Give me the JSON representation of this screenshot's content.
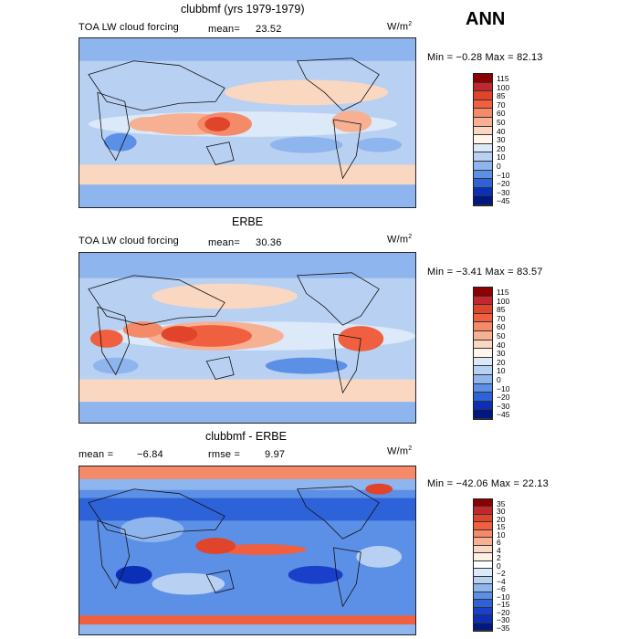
{
  "header": {
    "season": "ANN"
  },
  "panels": [
    {
      "title": "clubbmf (yrs 1979-1979)",
      "left_label": "TOA LW cloud forcing",
      "stat1_label": "mean=",
      "stat1_value": "23.52",
      "units": "W/m",
      "units_sup": "2",
      "minmax": "Min =  −0.28  Max =  82.13",
      "levels": [
        "115",
        "100",
        "85",
        "70",
        "60",
        "50",
        "40",
        "30",
        "20",
        "10",
        "0",
        "−10",
        "−20",
        "−30",
        "−45"
      ],
      "colors": [
        "#8b0000",
        "#c1272d",
        "#e0442a",
        "#f06040",
        "#f58a68",
        "#f7b092",
        "#fad7c0",
        "#fff5ec",
        "#dce9f8",
        "#b8d1f3",
        "#8fb5ee",
        "#5c8fe6",
        "#2d62d8",
        "#0c2fb8",
        "#001880"
      ]
    },
    {
      "title": "ERBE",
      "left_label": "TOA LW cloud forcing",
      "stat1_label": "mean=",
      "stat1_value": "30.36",
      "units": "W/m",
      "units_sup": "2",
      "minmax": "Min =  −3.41  Max =  83.57",
      "levels": [
        "115",
        "100",
        "85",
        "70",
        "60",
        "50",
        "40",
        "30",
        "20",
        "10",
        "0",
        "−10",
        "−20",
        "−30",
        "−45"
      ],
      "colors": [
        "#8b0000",
        "#c1272d",
        "#e0442a",
        "#f06040",
        "#f58a68",
        "#f7b092",
        "#fad7c0",
        "#fff5ec",
        "#dce9f8",
        "#b8d1f3",
        "#8fb5ee",
        "#5c8fe6",
        "#2d62d8",
        "#0c2fb8",
        "#001880"
      ]
    },
    {
      "title": "clubbmf - ERBE",
      "stat1_label": "mean =",
      "stat1_value": "−6.84",
      "stat2_label": "rmse =",
      "stat2_value": "9.97",
      "units": "W/m",
      "units_sup": "2",
      "minmax": "Min = −42.06  Max =  22.13",
      "levels": [
        "35",
        "30",
        "20",
        "15",
        "10",
        "6",
        "4",
        "2",
        "0",
        "−2",
        "−4",
        "−6",
        "−10",
        "−15",
        "−20",
        "−30",
        "−35"
      ],
      "colors": [
        "#8b0000",
        "#c1272d",
        "#e0442a",
        "#f06040",
        "#f58a68",
        "#f7b092",
        "#fad7c0",
        "#fff0e6",
        "#ffffff",
        "#dce9f8",
        "#b8d1f3",
        "#8fb5ee",
        "#5c8fe6",
        "#2d62d8",
        "#1a3fc8",
        "#0c2fb8",
        "#001880"
      ]
    }
  ]
}
